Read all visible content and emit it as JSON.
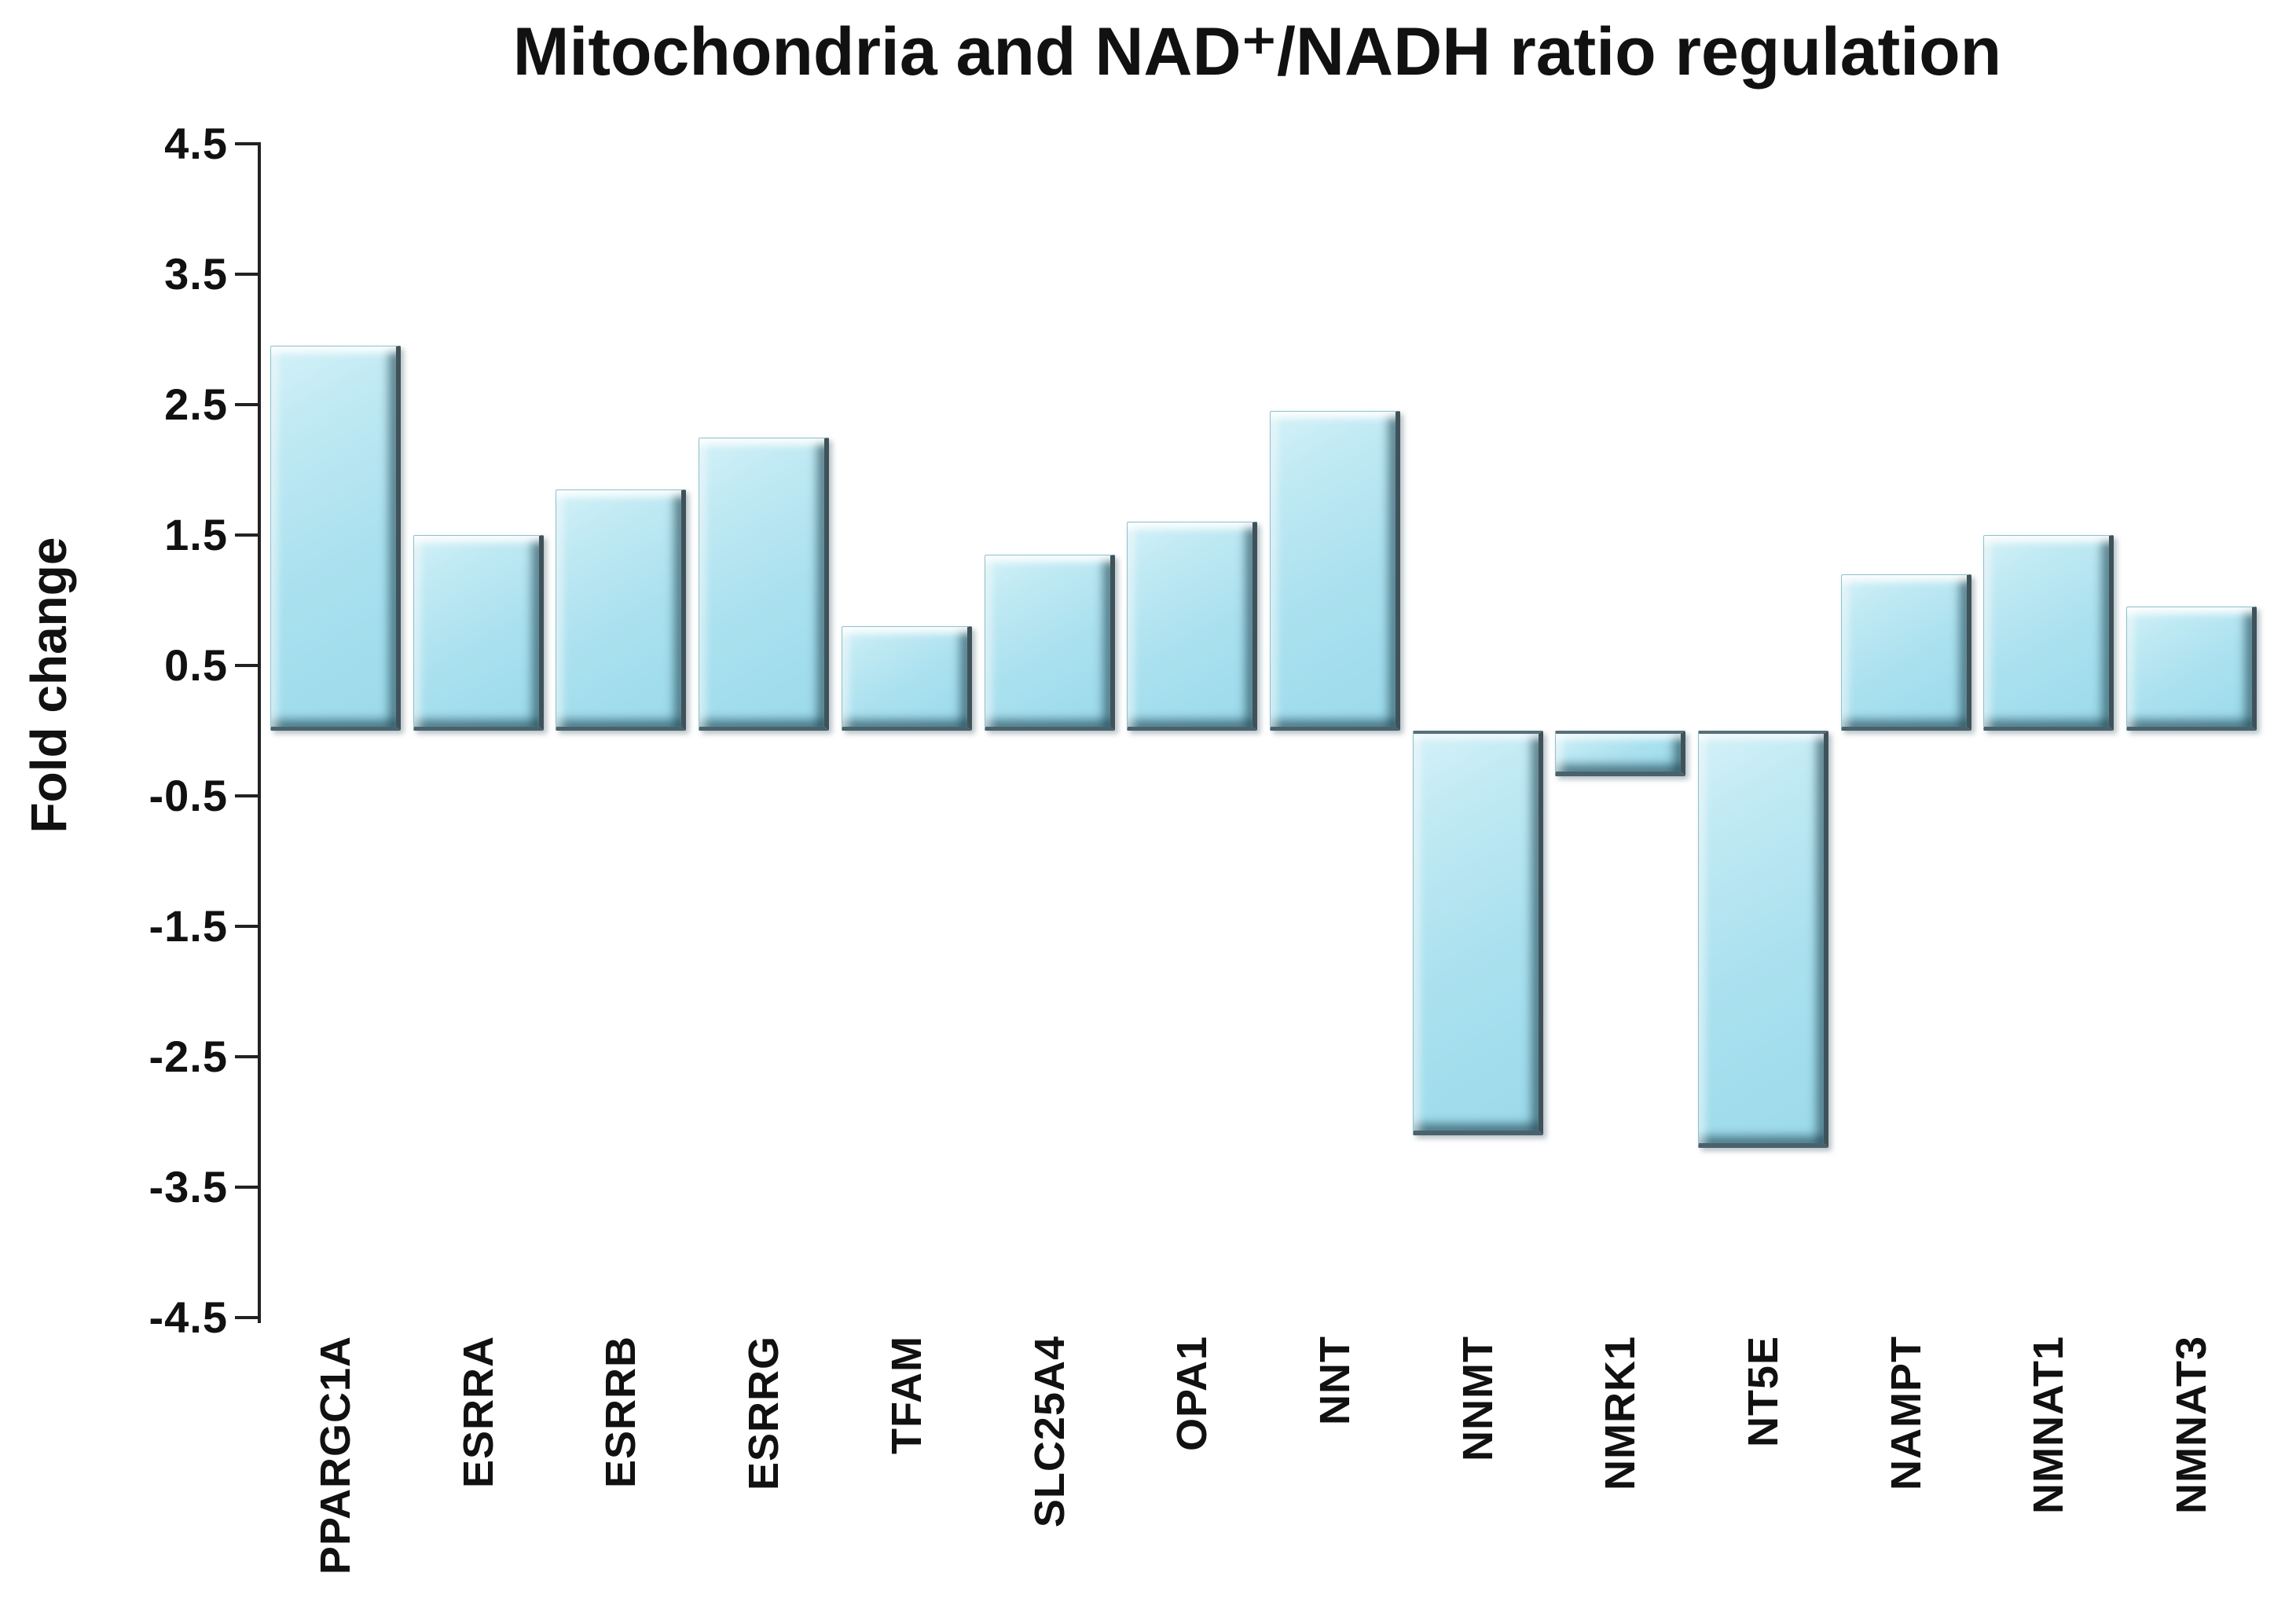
{
  "chart_data": {
    "type": "bar",
    "title": "Mitochondria and NAD⁺/NADH ratio regulation",
    "ylabel": "Fold change",
    "xlabel": "",
    "categories": [
      "PPARGC1A",
      "ESRRA",
      "ESRRB",
      "ESRRG",
      "TFAM",
      "SLC25A4",
      "OPA1",
      "NNT",
      "NNMT",
      "NMRK1",
      "NT5E",
      "NAMPT",
      "NMNAT1",
      "NMNAT3"
    ],
    "values": [
      2.95,
      1.5,
      1.85,
      2.25,
      0.8,
      1.35,
      1.6,
      2.45,
      -3.1,
      -0.35,
      -3.2,
      1.2,
      1.5,
      0.95
    ],
    "ylim": [
      -4.5,
      4.5
    ],
    "ytick_labels": [
      "4.5",
      "3.5",
      "2.5",
      "1.5",
      "0.5",
      "-0.5",
      "-1.5",
      "-2.5",
      "-3.5",
      "-4.5"
    ],
    "grid": false,
    "legend": false,
    "colors": {
      "bar_fill": "#a9e0ee",
      "bar_fill_light": "#d4f1f8",
      "bar_edge_dark": "#3f525a",
      "axis": "#222222",
      "text": "#111111"
    }
  }
}
